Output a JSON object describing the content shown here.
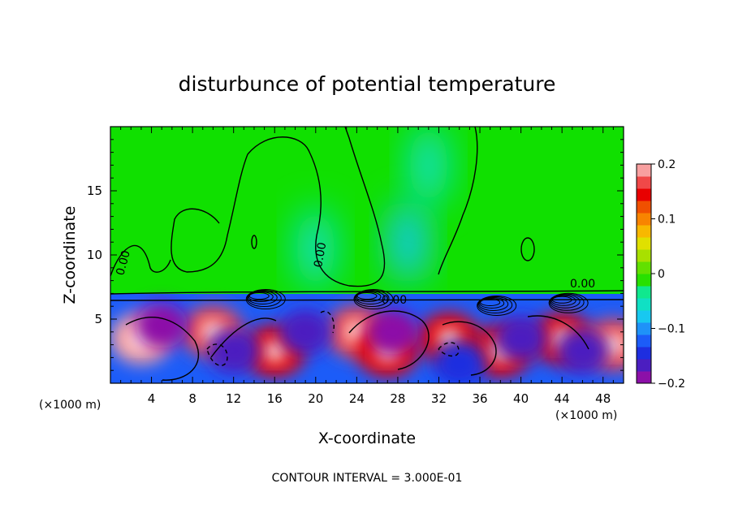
{
  "chart_data": {
    "type": "heatmap",
    "title": "disturbunce of potential temperature",
    "xlabel": "X-coordinate",
    "ylabel": "Z-coordinate",
    "x_unit_label": "(×1000 m)",
    "xlim": [
      0,
      50
    ],
    "ylim": [
      0,
      20
    ],
    "x_ticks": [
      4,
      8,
      12,
      16,
      20,
      24,
      28,
      32,
      36,
      40,
      44,
      48
    ],
    "y_ticks": [
      5,
      10,
      15
    ],
    "colorbar": {
      "min": -0.2,
      "max": 0.2,
      "ticks": [
        "0.2",
        "0.1",
        "0",
        "−0.1",
        "−0.2"
      ],
      "colors": [
        "#8c10a8",
        "#4b1ec0",
        "#1e2ee0",
        "#1c5cf8",
        "#1f92f8",
        "#18c8f0",
        "#10e0c4",
        "#10e88e",
        "#28e000",
        "#62e000",
        "#a8e000",
        "#e0e000",
        "#f8b800",
        "#f88400",
        "#f05000",
        "#e80000",
        "#f04848",
        "#f8a0a0"
      ]
    },
    "contour_labels": [
      "0.00",
      "0.00",
      "0.00",
      "0.00"
    ],
    "footer": "CONTOUR INTERVAL = 3.000E-01",
    "features": [
      {
        "kind": "warm",
        "x": 3,
        "z": 3.5,
        "value": 0.18
      },
      {
        "kind": "warm",
        "x": 10,
        "z": 4,
        "value": 0.17
      },
      {
        "kind": "warm",
        "x": 16,
        "z": 2.5,
        "value": 0.15
      },
      {
        "kind": "warm",
        "x": 24,
        "z": 4,
        "value": 0.16
      },
      {
        "kind": "warm",
        "x": 27,
        "z": 2.5,
        "value": 0.14
      },
      {
        "kind": "warm",
        "x": 33,
        "z": 3.5,
        "value": 0.15
      },
      {
        "kind": "warm",
        "x": 38,
        "z": 2.5,
        "value": 0.14
      },
      {
        "kind": "warm",
        "x": 44,
        "z": 3.5,
        "value": 0.15
      },
      {
        "kind": "warm",
        "x": 49,
        "z": 3,
        "value": 0.16
      },
      {
        "kind": "cold",
        "x": 5,
        "z": 4.5,
        "value": -0.18
      },
      {
        "kind": "cold",
        "x": 12,
        "z": 2.5,
        "value": -0.17
      },
      {
        "kind": "cold",
        "x": 19,
        "z": 4,
        "value": -0.16
      },
      {
        "kind": "cold",
        "x": 27.5,
        "z": 4,
        "value": -0.19
      },
      {
        "kind": "cold",
        "x": 34,
        "z": 1.5,
        "value": -0.15
      },
      {
        "kind": "cold",
        "x": 40,
        "z": 3.5,
        "value": -0.17
      },
      {
        "kind": "cold",
        "x": 46,
        "z": 2.5,
        "value": -0.16
      },
      {
        "kind": "cool",
        "x": 20,
        "z": 10.5,
        "value": -0.05
      },
      {
        "kind": "cool",
        "x": 29,
        "z": 11,
        "value": -0.07
      },
      {
        "kind": "cool",
        "x": 31,
        "z": 17,
        "value": -0.05
      }
    ]
  }
}
